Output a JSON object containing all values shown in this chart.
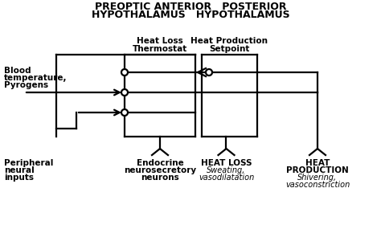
{
  "bg_color": "#ffffff",
  "line_color": "#000000",
  "title_line1": "PREOPTIC ANTERIOR   POSTERIOR",
  "title_line2": "HYPOTHALAMUS   HYPOTHALAMUS",
  "lbl_heat_loss_therm": "Heat Loss  Heat Production",
  "lbl_thermostat": "Thermostat",
  "lbl_setpoint": "Setpoint",
  "lbl_blood": "Blood\ntemperature,\nPyrogens",
  "lbl_peripheral": "Peripheral\nneural\ninputs",
  "lbl_endocrine": "Endocrine\nneurosecretory\nneurons",
  "lbl_heat_loss": "HEAT LOSS",
  "lbl_heat_loss_italic": "Sweating,\nvasodilatation",
  "lbl_heat_prod": "HEAT\nPRODUCTION",
  "lbl_heat_prod_italic": "Shivering,\nvasoconstriction"
}
